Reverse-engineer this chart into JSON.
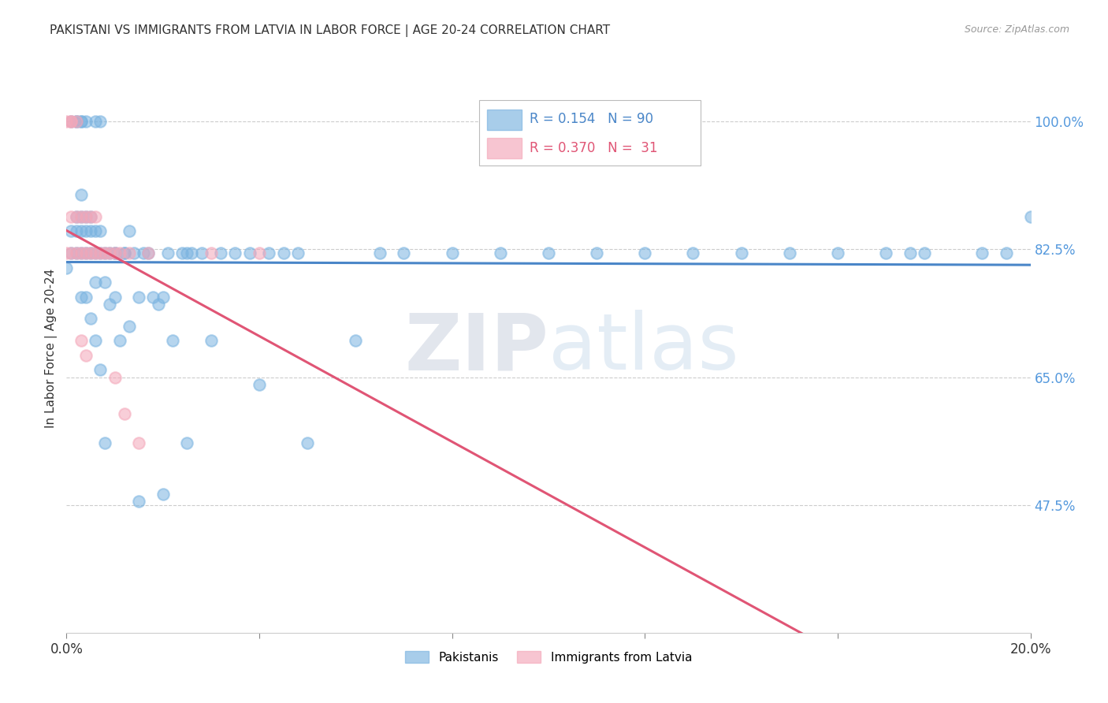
{
  "title": "PAKISTANI VS IMMIGRANTS FROM LATVIA IN LABOR FORCE | AGE 20-24 CORRELATION CHART",
  "source": "Source: ZipAtlas.com",
  "ylabel": "In Labor Force | Age 20-24",
  "xlim": [
    0.0,
    0.2
  ],
  "ylim": [
    0.3,
    1.08
  ],
  "xtick_positions": [
    0.0,
    0.04,
    0.08,
    0.12,
    0.16,
    0.2
  ],
  "xticklabels": [
    "0.0%",
    "",
    "",
    "",
    "",
    "20.0%"
  ],
  "ytick_positions": [
    0.475,
    0.65,
    0.825,
    1.0
  ],
  "ytick_labels_right": [
    "47.5%",
    "65.0%",
    "82.5%",
    "100.0%"
  ],
  "grid_color": "#cccccc",
  "bg_color": "#ffffff",
  "blue_color": "#7ab3e0",
  "pink_color": "#f4a7b9",
  "blue_line_color": "#4a86c8",
  "pink_line_color": "#e05575",
  "r_blue": 0.154,
  "n_blue": 90,
  "r_pink": 0.37,
  "n_pink": 31,
  "watermark_zip": "ZIP",
  "watermark_atlas": "atlas",
  "pakistanis_x": [
    0.0,
    0.001,
    0.001,
    0.001,
    0.002,
    0.002,
    0.002,
    0.002,
    0.002,
    0.003,
    0.003,
    0.003,
    0.003,
    0.003,
    0.003,
    0.004,
    0.004,
    0.004,
    0.004,
    0.005,
    0.005,
    0.005,
    0.006,
    0.006,
    0.006,
    0.006,
    0.007,
    0.007,
    0.007,
    0.008,
    0.008,
    0.009,
    0.009,
    0.01,
    0.01,
    0.011,
    0.012,
    0.013,
    0.013,
    0.014,
    0.015,
    0.016,
    0.017,
    0.018,
    0.019,
    0.02,
    0.021,
    0.022,
    0.024,
    0.025,
    0.026,
    0.028,
    0.03,
    0.032,
    0.035,
    0.038,
    0.04,
    0.042,
    0.045,
    0.048,
    0.05,
    0.06,
    0.065,
    0.07,
    0.08,
    0.09,
    0.1,
    0.11,
    0.12,
    0.13,
    0.14,
    0.15,
    0.16,
    0.17,
    0.175,
    0.178,
    0.19,
    0.195,
    0.2,
    0.003,
    0.004,
    0.005,
    0.006,
    0.007,
    0.008,
    0.01,
    0.012,
    0.015,
    0.02,
    0.025
  ],
  "pakistanis_y": [
    0.8,
    0.82,
    0.85,
    1.0,
    0.82,
    0.85,
    0.87,
    1.0,
    1.0,
    0.82,
    0.85,
    0.87,
    0.9,
    1.0,
    1.0,
    0.82,
    0.85,
    0.87,
    1.0,
    0.82,
    0.85,
    0.87,
    0.78,
    0.82,
    0.85,
    1.0,
    0.82,
    0.85,
    1.0,
    0.78,
    0.82,
    0.75,
    0.82,
    0.76,
    0.82,
    0.7,
    0.82,
    0.72,
    0.85,
    0.82,
    0.76,
    0.82,
    0.82,
    0.76,
    0.75,
    0.76,
    0.82,
    0.7,
    0.82,
    0.82,
    0.82,
    0.82,
    0.7,
    0.82,
    0.82,
    0.82,
    0.64,
    0.82,
    0.82,
    0.82,
    0.56,
    0.7,
    0.82,
    0.82,
    0.82,
    0.82,
    0.82,
    0.82,
    0.82,
    0.82,
    0.82,
    0.82,
    0.82,
    0.82,
    0.82,
    0.82,
    0.82,
    0.82,
    0.87,
    0.76,
    0.76,
    0.73,
    0.7,
    0.66,
    0.56,
    0.82,
    0.82,
    0.48,
    0.49,
    0.56
  ],
  "latvians_x": [
    0.0,
    0.0,
    0.001,
    0.001,
    0.001,
    0.001,
    0.002,
    0.002,
    0.002,
    0.003,
    0.003,
    0.003,
    0.004,
    0.004,
    0.004,
    0.005,
    0.005,
    0.006,
    0.006,
    0.007,
    0.008,
    0.009,
    0.01,
    0.01,
    0.011,
    0.012,
    0.013,
    0.015,
    0.017,
    0.03,
    0.04
  ],
  "latvians_y": [
    0.82,
    1.0,
    0.82,
    0.87,
    1.0,
    1.0,
    0.82,
    0.87,
    1.0,
    0.7,
    0.82,
    0.87,
    0.68,
    0.82,
    0.87,
    0.82,
    0.87,
    0.82,
    0.87,
    0.82,
    0.82,
    0.82,
    0.65,
    0.82,
    0.82,
    0.6,
    0.82,
    0.56,
    0.82,
    0.82,
    0.82
  ]
}
